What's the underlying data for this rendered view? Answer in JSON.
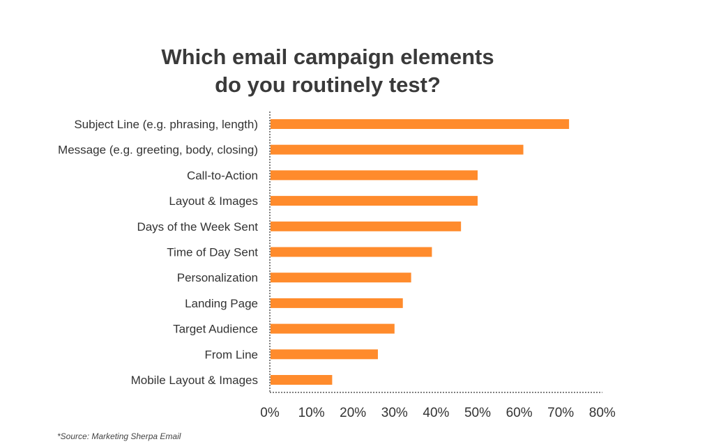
{
  "title_lines": [
    "Which email campaign elements",
    "do you routinely test?"
  ],
  "source": "*Source: Marketing Sherpa Email",
  "colors": {
    "bar": "#FF8B2C",
    "axis": "#555555",
    "text": "#333333"
  },
  "chart_data": {
    "type": "bar",
    "orientation": "horizontal",
    "title": "Which email campaign elements do you routinely test?",
    "categories": [
      "Subject Line (e.g. phrasing, length)",
      "Message (e.g. greeting, body, closing)",
      "Call-to-Action",
      "Layout & Images",
      "Days of the Week Sent",
      "Time of Day Sent",
      "Personalization",
      "Landing Page",
      "Target Audience",
      "From Line",
      "Mobile Layout & Images"
    ],
    "values": [
      72,
      61,
      50,
      50,
      46,
      39,
      34,
      32,
      30,
      26,
      15
    ],
    "xlim": [
      0,
      80
    ],
    "xticks": [
      0,
      10,
      20,
      30,
      40,
      50,
      60,
      70,
      80
    ],
    "xtick_labels": [
      "0%",
      "10%",
      "20%",
      "30%",
      "40%",
      "50%",
      "60%",
      "70%",
      "80%"
    ],
    "grid": false,
    "legend": "none"
  }
}
